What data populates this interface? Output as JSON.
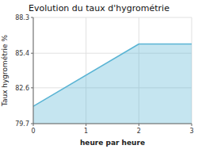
{
  "chart_data": {
    "type": "area",
    "title": "Evolution du taux d'hygrométrie",
    "xlabel": "heure par heure",
    "ylabel": "Taux hygrométrie %",
    "x": [
      0,
      2,
      3
    ],
    "values": [
      81.1,
      86.15,
      86.15
    ],
    "color": "#5ab4d4",
    "xlim": [
      0,
      3
    ],
    "ylim": [
      79.7,
      88.3
    ],
    "xticks": [
      0,
      1,
      2,
      3
    ],
    "yticks": [
      79.7,
      82.6,
      85.4,
      88.3
    ],
    "grid": true
  }
}
